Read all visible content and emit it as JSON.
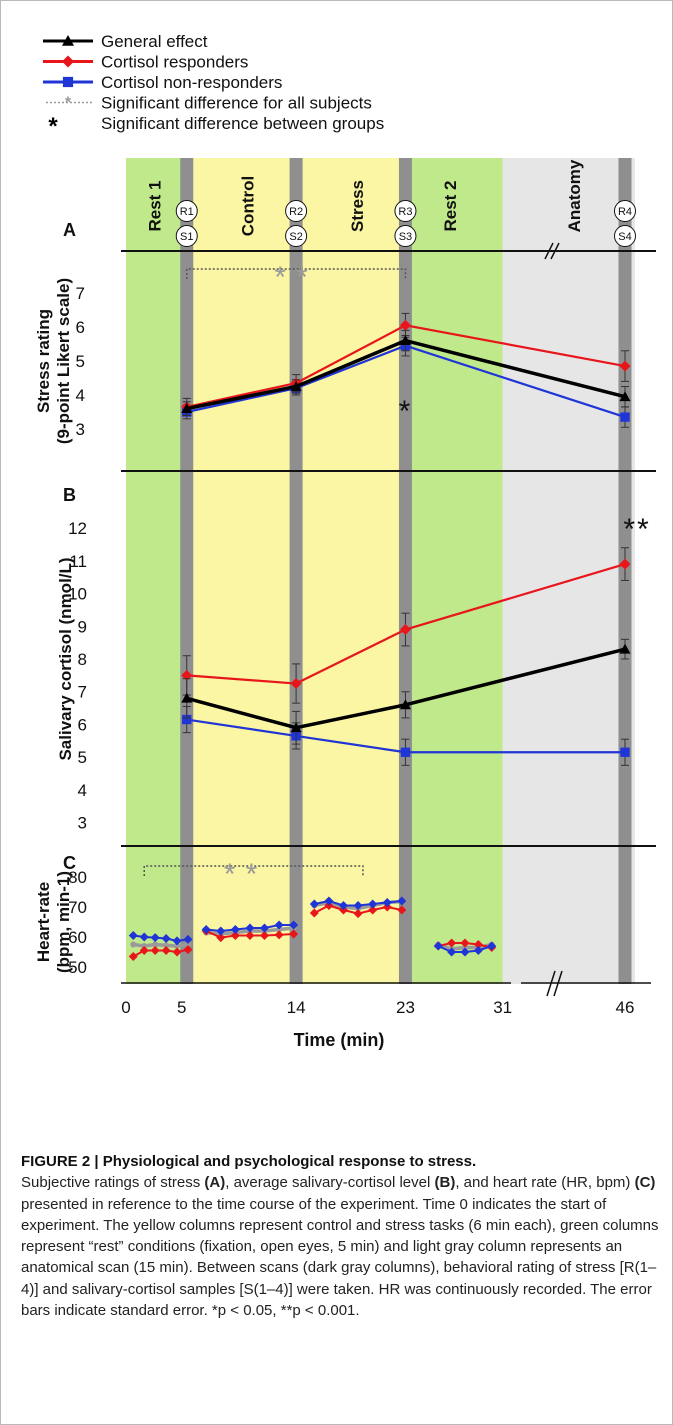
{
  "legend": {
    "items": [
      {
        "label": "General effect",
        "color": "#000000",
        "marker": "triangle",
        "style": "solid"
      },
      {
        "label": "Cortisol responders",
        "color": "#e8161b",
        "marker": "diamond",
        "style": "solid"
      },
      {
        "label": "Cortisol non-responders",
        "color": "#1f35d6",
        "marker": "square",
        "style": "solid"
      },
      {
        "label": "Significant difference for all subjects",
        "color": "#9a9a9a",
        "marker": "star",
        "style": "dotted"
      },
      {
        "label": "Significant difference between groups",
        "symbol": "*",
        "style": "symbol"
      }
    ]
  },
  "colors": {
    "rest": "#bfe98a",
    "task": "#fbf6a3",
    "anatomy": "#e6e6e6",
    "scan": "#8f8f8f",
    "general": "#000000",
    "responders": "#e8161b",
    "nonresponders": "#1f35d6",
    "significance": "#9a9a9a"
  },
  "chart_data": [
    {
      "type": "line",
      "panel": "A",
      "ylabel": "Stress rating (9-point Likert scale)",
      "ylabel_lines": [
        "Stress rating",
        "(9-point Likert scale)"
      ],
      "yticks": [
        3,
        4,
        5,
        6,
        7
      ],
      "ylim": [
        2,
        8
      ],
      "x": [
        5,
        14,
        23,
        46
      ],
      "series": [
        {
          "name": "General effect",
          "values": [
            3.6,
            4.25,
            5.6,
            3.95
          ],
          "errors": [
            0.2,
            0.2,
            0.3,
            0.3
          ]
        },
        {
          "name": "Cortisol responders",
          "values": [
            3.65,
            4.35,
            6.05,
            4.85
          ],
          "errors": [
            0.25,
            0.25,
            0.35,
            0.45
          ]
        },
        {
          "name": "Cortisol non-responders",
          "values": [
            3.5,
            4.2,
            5.45,
            3.35
          ],
          "errors": [
            0.2,
            0.2,
            0.3,
            0.3
          ]
        }
      ],
      "significance": [
        {
          "from": 5,
          "to": 23,
          "label": "**"
        }
      ]
    },
    {
      "type": "line",
      "panel": "B",
      "ylabel": "Salivary cortisol (nmol/L)",
      "yticks": [
        3,
        4,
        5,
        6,
        7,
        8,
        9,
        10,
        11,
        12
      ],
      "ylim": [
        2.5,
        13.5
      ],
      "x": [
        5,
        14,
        23,
        46
      ],
      "series": [
        {
          "name": "General effect",
          "values": [
            6.8,
            5.9,
            6.6,
            8.3
          ],
          "errors": [
            0.6,
            0.5,
            0.4,
            0.3
          ]
        },
        {
          "name": "Cortisol responders",
          "values": [
            7.5,
            7.25,
            8.9,
            10.9
          ],
          "errors": [
            0.6,
            0.6,
            0.5,
            0.5
          ]
        },
        {
          "name": "Cortisol non-responders",
          "values": [
            6.15,
            5.65,
            5.15,
            5.15
          ],
          "errors": [
            0.4,
            0.4,
            0.4,
            0.4
          ]
        }
      ],
      "annotations": [
        {
          "x": 23,
          "label": "*"
        },
        {
          "x": 46,
          "label": "**"
        }
      ]
    },
    {
      "type": "line",
      "panel": "C",
      "ylabel": "Heart-rate (bpm, min-1)",
      "ylabel_lines": [
        "Heart-rate",
        "(bpm, min-1)"
      ],
      "yticks": [
        50,
        60,
        70,
        80
      ],
      "ylim": [
        42,
        88
      ],
      "xlabel": "Time (min)",
      "xtick_labels": [
        "0",
        "5",
        "14",
        "23",
        "31",
        "46"
      ],
      "x_axis_break": true,
      "segments": [
        {
          "x": [
            0.6,
            1.5,
            2.4,
            3.3,
            4.2,
            5.1
          ],
          "series": [
            {
              "name": "General effect",
              "values": [
                57.5,
                57.0,
                57.5,
                57.2,
                57.0,
                57.5
              ]
            },
            {
              "name": "Cortisol responders",
              "values": [
                53.5,
                55.5,
                55.5,
                55.5,
                55.0,
                55.8
              ]
            },
            {
              "name": "Cortisol non-responders",
              "values": [
                60.5,
                60.0,
                59.8,
                59.5,
                58.7,
                59.2
              ]
            }
          ]
        },
        {
          "x": [
            6.6,
            7.8,
            9.0,
            10.2,
            11.4,
            12.6,
            13.8
          ],
          "series": [
            {
              "name": "General effect",
              "values": [
                61.5,
                61.0,
                61.5,
                62.0,
                62.0,
                62.5,
                63.0
              ]
            },
            {
              "name": "Cortisol responders",
              "values": [
                62.0,
                59.8,
                60.5,
                60.5,
                60.5,
                60.7,
                61.0
              ]
            },
            {
              "name": "Cortisol non-responders",
              "values": [
                62.5,
                62.0,
                62.5,
                63.0,
                63.0,
                64.0,
                64.0
              ]
            }
          ]
        },
        {
          "x": [
            15.5,
            16.7,
            17.9,
            19.1,
            20.3,
            21.5,
            22.7
          ],
          "series": [
            {
              "name": "General effect",
              "values": [
                70.5,
                71.5,
                70.0,
                69.5,
                70.5,
                71.5,
                71.8
              ]
            },
            {
              "name": "Cortisol responders",
              "values": [
                68.0,
                70.5,
                69.0,
                67.8,
                69.0,
                70.0,
                69.0
              ]
            },
            {
              "name": "Cortisol non-responders",
              "values": [
                71.0,
                72.0,
                70.5,
                70.5,
                71.0,
                71.5,
                72.0
              ]
            }
          ]
        },
        {
          "x": [
            25.7,
            26.8,
            27.9,
            29.0,
            30.1
          ],
          "series": [
            {
              "name": "General effect",
              "values": [
                57.5,
                56.0,
                56.5,
                56.5,
                57.5
              ]
            },
            {
              "name": "Cortisol responders",
              "values": [
                57.0,
                58.0,
                58.0,
                57.5,
                56.5
              ]
            },
            {
              "name": "Cortisol non-responders",
              "values": [
                57.0,
                55.0,
                55.0,
                55.5,
                57.0
              ]
            }
          ]
        }
      ],
      "significance": [
        {
          "from": 1.5,
          "to": 19.5,
          "label": "**"
        }
      ]
    }
  ],
  "phases": [
    {
      "label": "Rest 1",
      "kind": "rest"
    },
    {
      "label": "Control",
      "kind": "task"
    },
    {
      "label": "Stress",
      "kind": "task"
    },
    {
      "label": "Rest 2",
      "kind": "rest"
    },
    {
      "label": "Anatomy",
      "kind": "anatomy"
    }
  ],
  "scans": [
    {
      "time": 5,
      "r": "R1",
      "s": "S1"
    },
    {
      "time": 14,
      "r": "R2",
      "s": "S2"
    },
    {
      "time": 23,
      "r": "R3",
      "s": "S3"
    },
    {
      "time": 46,
      "r": "R4",
      "s": "S4"
    }
  ],
  "panel_letters": [
    "A",
    "B",
    "C"
  ],
  "caption": {
    "title": "FIGURE 2 | Physiological and psychological response to stress.",
    "body_segments": [
      {
        "text": "Subjective ratings of stress ",
        "bold": false
      },
      {
        "text": "(A)",
        "bold": true
      },
      {
        "text": ", average salivary-cortisol level ",
        "bold": false
      },
      {
        "text": "(B)",
        "bold": true
      },
      {
        "text": ", and heart rate (HR, bpm) ",
        "bold": false
      },
      {
        "text": "(C)",
        "bold": true
      },
      {
        "text": " presented in reference to the time course of the experiment. Time 0 indicates the start of experiment. The yellow columns represent control and stress tasks (6 min each), green columns represent “rest” conditions (fixation, open eyes, 5 min) and light gray column represents an anatomical scan (15 min). Between scans (dark gray columns), behavioral rating of stress [R(1–4)] and salivary-cortisol samples [S(1–4)] were taken. HR was continuously recorded. The error bars indicate standard error. *p < 0.05, **p < 0.001.",
        "bold": false
      }
    ]
  }
}
